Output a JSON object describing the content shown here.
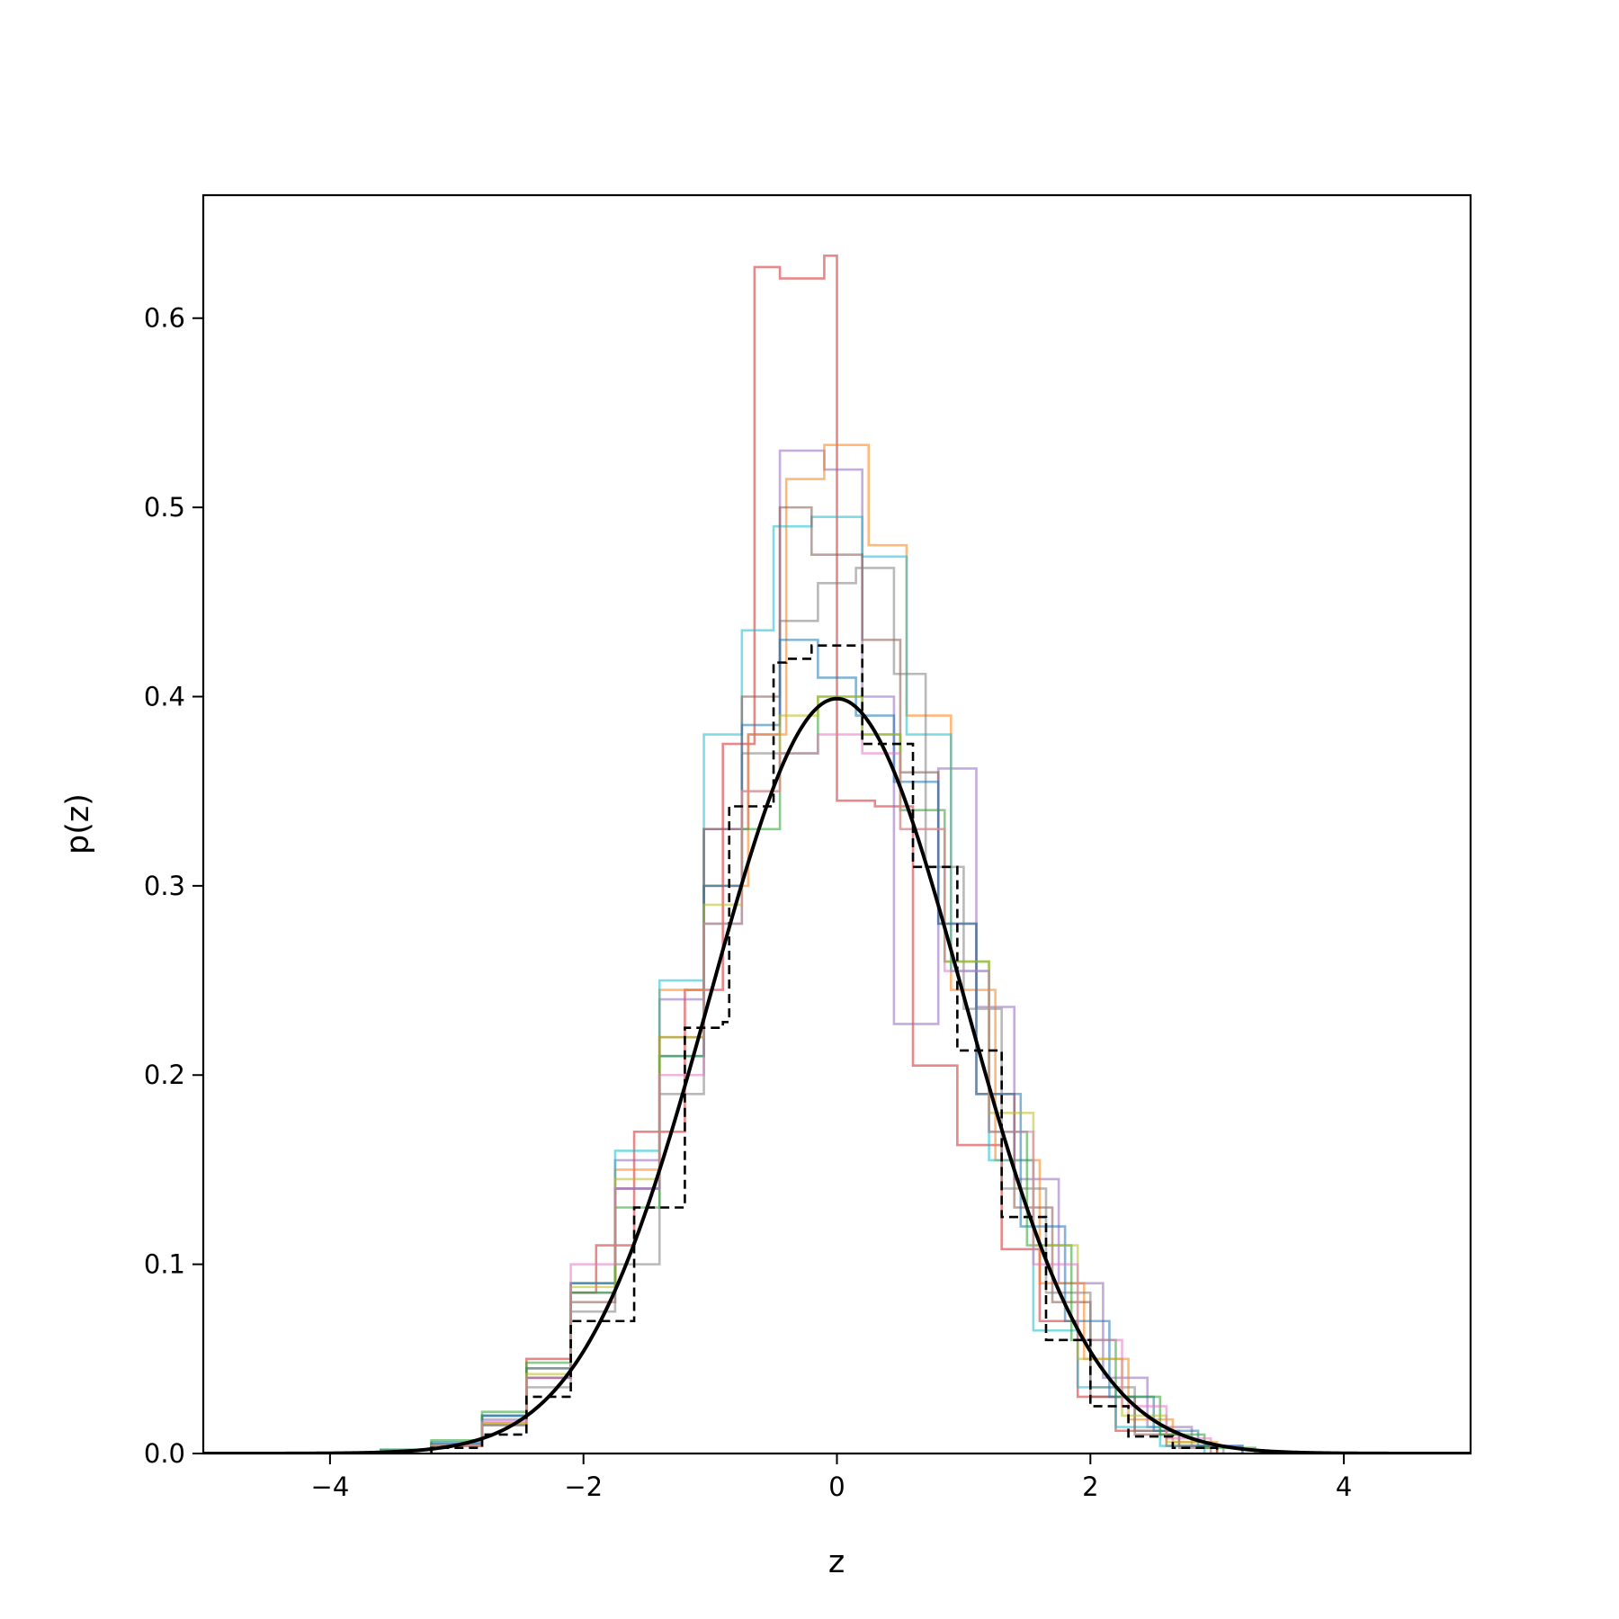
{
  "chart_data": {
    "type": "line",
    "xlabel": "z",
    "ylabel": "p(z)",
    "xlim": [
      -5,
      5
    ],
    "ylim": [
      0,
      0.665
    ],
    "x_ticks": [
      -4,
      -2,
      0,
      2,
      4
    ],
    "x_tick_labels": [
      "−4",
      "−2",
      "0",
      "2",
      "4"
    ],
    "y_ticks": [
      0.0,
      0.1,
      0.2,
      0.3,
      0.4,
      0.5,
      0.6
    ],
    "y_tick_labels": [
      "0.0",
      "0.1",
      "0.2",
      "0.3",
      "0.4",
      "0.5",
      "0.6"
    ],
    "grid": false,
    "legend": "none",
    "reference_curve": {
      "style": "solid",
      "color": "#000000",
      "mean": 0,
      "std": 1,
      "peak": 0.399
    },
    "series": [
      {
        "style": "dashed",
        "color": "#000000",
        "edges": [
          -3.2,
          -2.8,
          -2.45,
          -2.1,
          -1.95,
          -1.6,
          -1.25,
          -1.2,
          -0.9,
          -0.85,
          -0.5,
          -0.4,
          -0.2,
          0.2,
          0.55,
          0.6,
          0.9,
          0.95,
          1.2,
          1.3,
          1.6,
          1.65,
          1.95,
          2.0,
          2.3,
          2.65,
          3.0
        ],
        "heights": [
          0.003,
          0.01,
          0.03,
          0.07,
          0.07,
          0.13,
          0.13,
          0.225,
          0.228,
          0.342,
          0.418,
          0.42,
          0.427,
          0.375,
          0.375,
          0.31,
          0.31,
          0.213,
          0.213,
          0.125,
          0.125,
          0.06,
          0.06,
          0.025,
          0.009,
          0.003
        ]
      },
      {
        "style": "step",
        "color": "#d62728",
        "edges": [
          -3.2,
          -2.8,
          -2.45,
          -2.1,
          -1.9,
          -1.6,
          -1.2,
          -0.9,
          -0.65,
          -0.45,
          -0.1,
          0.0,
          0.3,
          0.6,
          0.95,
          1.3,
          1.6,
          1.9,
          2.2,
          2.6,
          3.0
        ],
        "heights": [
          0.005,
          0.02,
          0.05,
          0.085,
          0.11,
          0.17,
          0.245,
          0.375,
          0.627,
          0.621,
          0.633,
          0.345,
          0.342,
          0.205,
          0.163,
          0.108,
          0.07,
          0.03,
          0.012,
          0.004
        ]
      },
      {
        "style": "step",
        "color": "#9467bd",
        "edges": [
          -3.2,
          -2.8,
          -2.45,
          -2.1,
          -1.75,
          -1.4,
          -1.05,
          -0.7,
          -0.45,
          -0.1,
          0.2,
          0.45,
          0.8,
          1.1,
          1.4,
          1.75,
          2.1,
          2.45,
          2.8,
          3.2
        ],
        "heights": [
          0.005,
          0.018,
          0.04,
          0.085,
          0.155,
          0.24,
          0.33,
          0.38,
          0.53,
          0.52,
          0.4,
          0.227,
          0.362,
          0.236,
          0.145,
          0.09,
          0.04,
          0.014,
          0.004
        ]
      },
      {
        "style": "step",
        "color": "#ff7f0e",
        "edges": [
          -3.2,
          -2.8,
          -2.45,
          -2.1,
          -1.75,
          -1.4,
          -1.05,
          -0.7,
          -0.4,
          -0.1,
          0.25,
          0.55,
          0.9,
          1.25,
          1.6,
          1.95,
          2.3,
          2.65,
          3.0
        ],
        "heights": [
          0.004,
          0.016,
          0.045,
          0.09,
          0.15,
          0.245,
          0.3,
          0.38,
          0.515,
          0.533,
          0.48,
          0.39,
          0.245,
          0.155,
          0.09,
          0.05,
          0.018,
          0.006
        ]
      },
      {
        "style": "step",
        "color": "#17becf",
        "edges": [
          -3.2,
          -2.8,
          -2.45,
          -2.1,
          -1.75,
          -1.4,
          -1.05,
          -0.75,
          -0.5,
          -0.2,
          0.2,
          0.55,
          0.9,
          1.2,
          1.55,
          1.9,
          2.2,
          2.55,
          2.9
        ],
        "heights": [
          0.005,
          0.02,
          0.04,
          0.09,
          0.16,
          0.25,
          0.38,
          0.435,
          0.49,
          0.495,
          0.474,
          0.38,
          0.255,
          0.155,
          0.065,
          0.035,
          0.014,
          0.004
        ]
      },
      {
        "style": "step",
        "color": "#8c564b",
        "edges": [
          -3.2,
          -2.8,
          -2.45,
          -2.1,
          -1.75,
          -1.4,
          -1.05,
          -0.75,
          -0.45,
          -0.2,
          0.2,
          0.5,
          0.8,
          1.1,
          1.4,
          1.7,
          2.0,
          2.35,
          2.7,
          3.0
        ],
        "heights": [
          0.004,
          0.015,
          0.04,
          0.08,
          0.14,
          0.22,
          0.33,
          0.4,
          0.5,
          0.475,
          0.43,
          0.36,
          0.28,
          0.19,
          0.13,
          0.08,
          0.03,
          0.01,
          0.003
        ]
      },
      {
        "style": "step",
        "color": "#7f7f7f",
        "edges": [
          -3.2,
          -2.8,
          -2.45,
          -2.1,
          -1.75,
          -1.4,
          -1.05,
          -0.75,
          -0.45,
          -0.15,
          0.15,
          0.45,
          0.7,
          1.0,
          1.3,
          1.65,
          2.0,
          2.35,
          2.7,
          3.05
        ],
        "heights": [
          0.004,
          0.015,
          0.035,
          0.075,
          0.1,
          0.19,
          0.3,
          0.37,
          0.44,
          0.46,
          0.468,
          0.412,
          0.31,
          0.235,
          0.14,
          0.085,
          0.035,
          0.012,
          0.004
        ]
      },
      {
        "style": "step",
        "color": "#1f77b4",
        "edges": [
          -3.6,
          -3.2,
          -2.8,
          -2.45,
          -2.1,
          -1.75,
          -1.4,
          -1.05,
          -0.75,
          -0.45,
          -0.15,
          0.15,
          0.45,
          0.8,
          1.1,
          1.45,
          1.8,
          2.15,
          2.5,
          2.85,
          3.2
        ],
        "heights": [
          0.002,
          0.006,
          0.02,
          0.045,
          0.09,
          0.14,
          0.21,
          0.3,
          0.385,
          0.43,
          0.41,
          0.39,
          0.355,
          0.28,
          0.19,
          0.12,
          0.07,
          0.03,
          0.012,
          0.004
        ]
      },
      {
        "style": "step",
        "color": "#2ca02c",
        "edges": [
          -3.6,
          -3.2,
          -2.8,
          -2.45,
          -2.1,
          -1.75,
          -1.4,
          -1.05,
          -0.75,
          -0.45,
          -0.15,
          0.2,
          0.5,
          0.85,
          1.2,
          1.5,
          1.85,
          2.2,
          2.55,
          2.9,
          3.3
        ],
        "heights": [
          0.002,
          0.007,
          0.022,
          0.048,
          0.085,
          0.13,
          0.21,
          0.28,
          0.33,
          0.37,
          0.4,
          0.38,
          0.34,
          0.26,
          0.17,
          0.11,
          0.06,
          0.03,
          0.01,
          0.003
        ]
      },
      {
        "style": "step",
        "color": "#bcbd22",
        "edges": [
          -3.2,
          -2.8,
          -2.45,
          -2.1,
          -1.75,
          -1.4,
          -1.05,
          -0.75,
          -0.45,
          -0.15,
          0.2,
          0.5,
          0.85,
          1.2,
          1.55,
          1.9,
          2.25,
          2.6,
          2.95
        ],
        "heights": [
          0.004,
          0.016,
          0.042,
          0.088,
          0.145,
          0.22,
          0.29,
          0.35,
          0.39,
          0.4,
          0.38,
          0.33,
          0.26,
          0.18,
          0.11,
          0.05,
          0.02,
          0.006
        ]
      },
      {
        "style": "step",
        "color": "#e377c2",
        "edges": [
          -3.2,
          -2.8,
          -2.45,
          -2.1,
          -1.75,
          -1.4,
          -1.05,
          -0.75,
          -0.45,
          -0.15,
          0.2,
          0.5,
          0.85,
          1.2,
          1.55,
          1.9,
          2.25,
          2.6,
          2.95
        ],
        "heights": [
          0.004,
          0.017,
          0.04,
          0.1,
          0.14,
          0.2,
          0.28,
          0.35,
          0.37,
          0.38,
          0.37,
          0.33,
          0.255,
          0.17,
          0.1,
          0.06,
          0.025,
          0.008
        ]
      }
    ]
  }
}
